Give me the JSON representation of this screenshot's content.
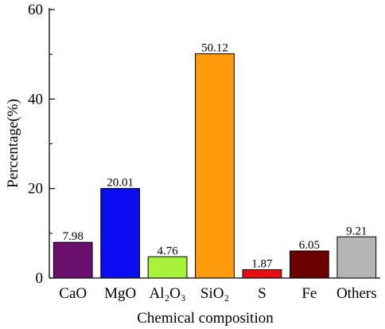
{
  "chart_data": {
    "type": "bar",
    "categories": [
      "CaO",
      "MgO",
      "Al₂O₃",
      "SiO₂",
      "S",
      "Fe",
      "Others"
    ],
    "values": [
      7.98,
      20.01,
      4.76,
      50.12,
      1.87,
      6.05,
      9.21
    ],
    "value_labels": [
      "7.98",
      "20.01",
      "4.76",
      "50.12",
      "1.87",
      "6.05",
      "9.21"
    ],
    "colors": [
      "#6a0f6e",
      "#0c0cf0",
      "#a8f23a",
      "#ff9a0a",
      "#e60f0f",
      "#6b0000",
      "#b5b5b5"
    ],
    "xlabel": "Chemical composition",
    "ylabel": "Percentage(%)",
    "ylim": [
      0,
      60
    ],
    "yticks": [
      0,
      20,
      40,
      60
    ],
    "ytick_labels": [
      "0",
      "20",
      "40",
      "60"
    ],
    "grid": false,
    "legend": "none"
  }
}
